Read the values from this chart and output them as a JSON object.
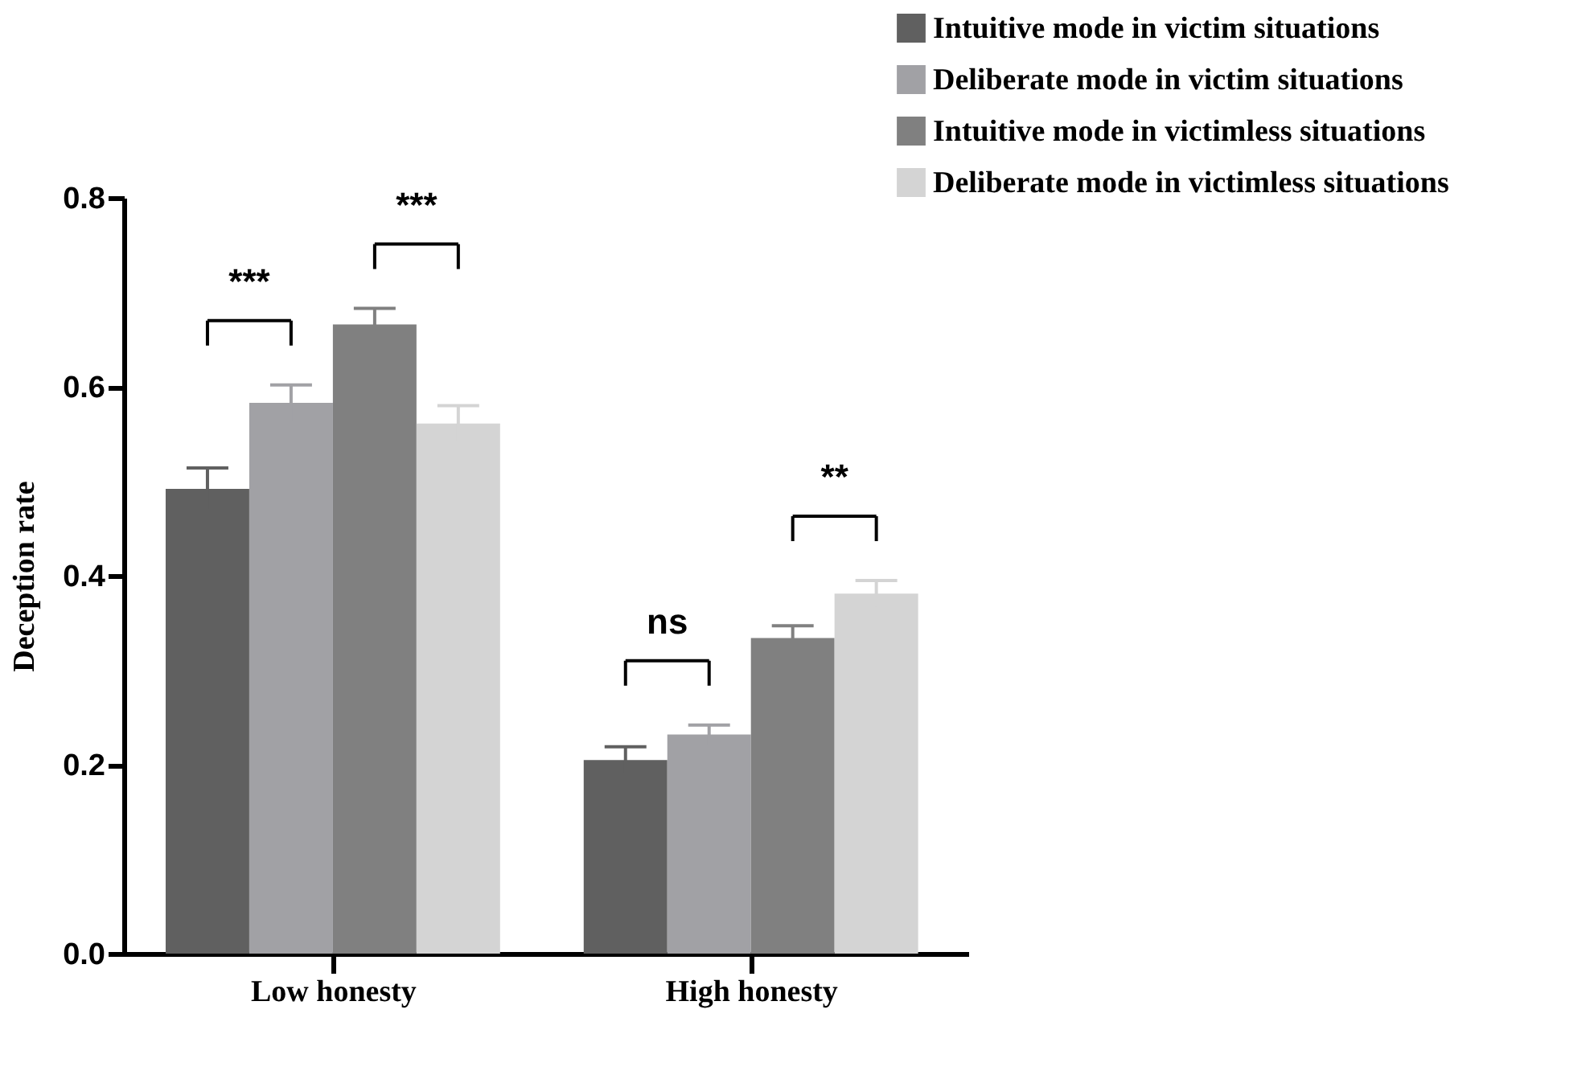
{
  "chart_data": {
    "type": "bar",
    "ylabel": "Deception rate",
    "categories": [
      "Low honesty",
      "High honesty"
    ],
    "series": [
      {
        "name": "Intuitive mode in victim situations",
        "color": "#606060",
        "values": [
          0.492,
          0.205
        ],
        "errors": [
          0.022,
          0.014
        ]
      },
      {
        "name": "Deliberate mode in victim situations",
        "color": "#a1a1a5",
        "values": [
          0.583,
          0.232
        ],
        "errors": [
          0.019,
          0.01
        ]
      },
      {
        "name": "Intuitive mode in victimless situations",
        "color": "#808080",
        "values": [
          0.666,
          0.334
        ],
        "errors": [
          0.017,
          0.013
        ]
      },
      {
        "name": "Deliberate mode in victimless situations",
        "color": "#d4d4d4",
        "values": [
          0.561,
          0.381
        ],
        "errors": [
          0.019,
          0.014
        ]
      }
    ],
    "ylim": [
      0,
      0.8
    ],
    "yticks": [
      {
        "value": 0,
        "label": "0.0"
      },
      0.2,
      0.4,
      0.6,
      0.8
    ],
    "grid": false,
    "legend": "top right",
    "annotations": [
      "***",
      "***",
      "ns",
      "**"
    ]
  }
}
